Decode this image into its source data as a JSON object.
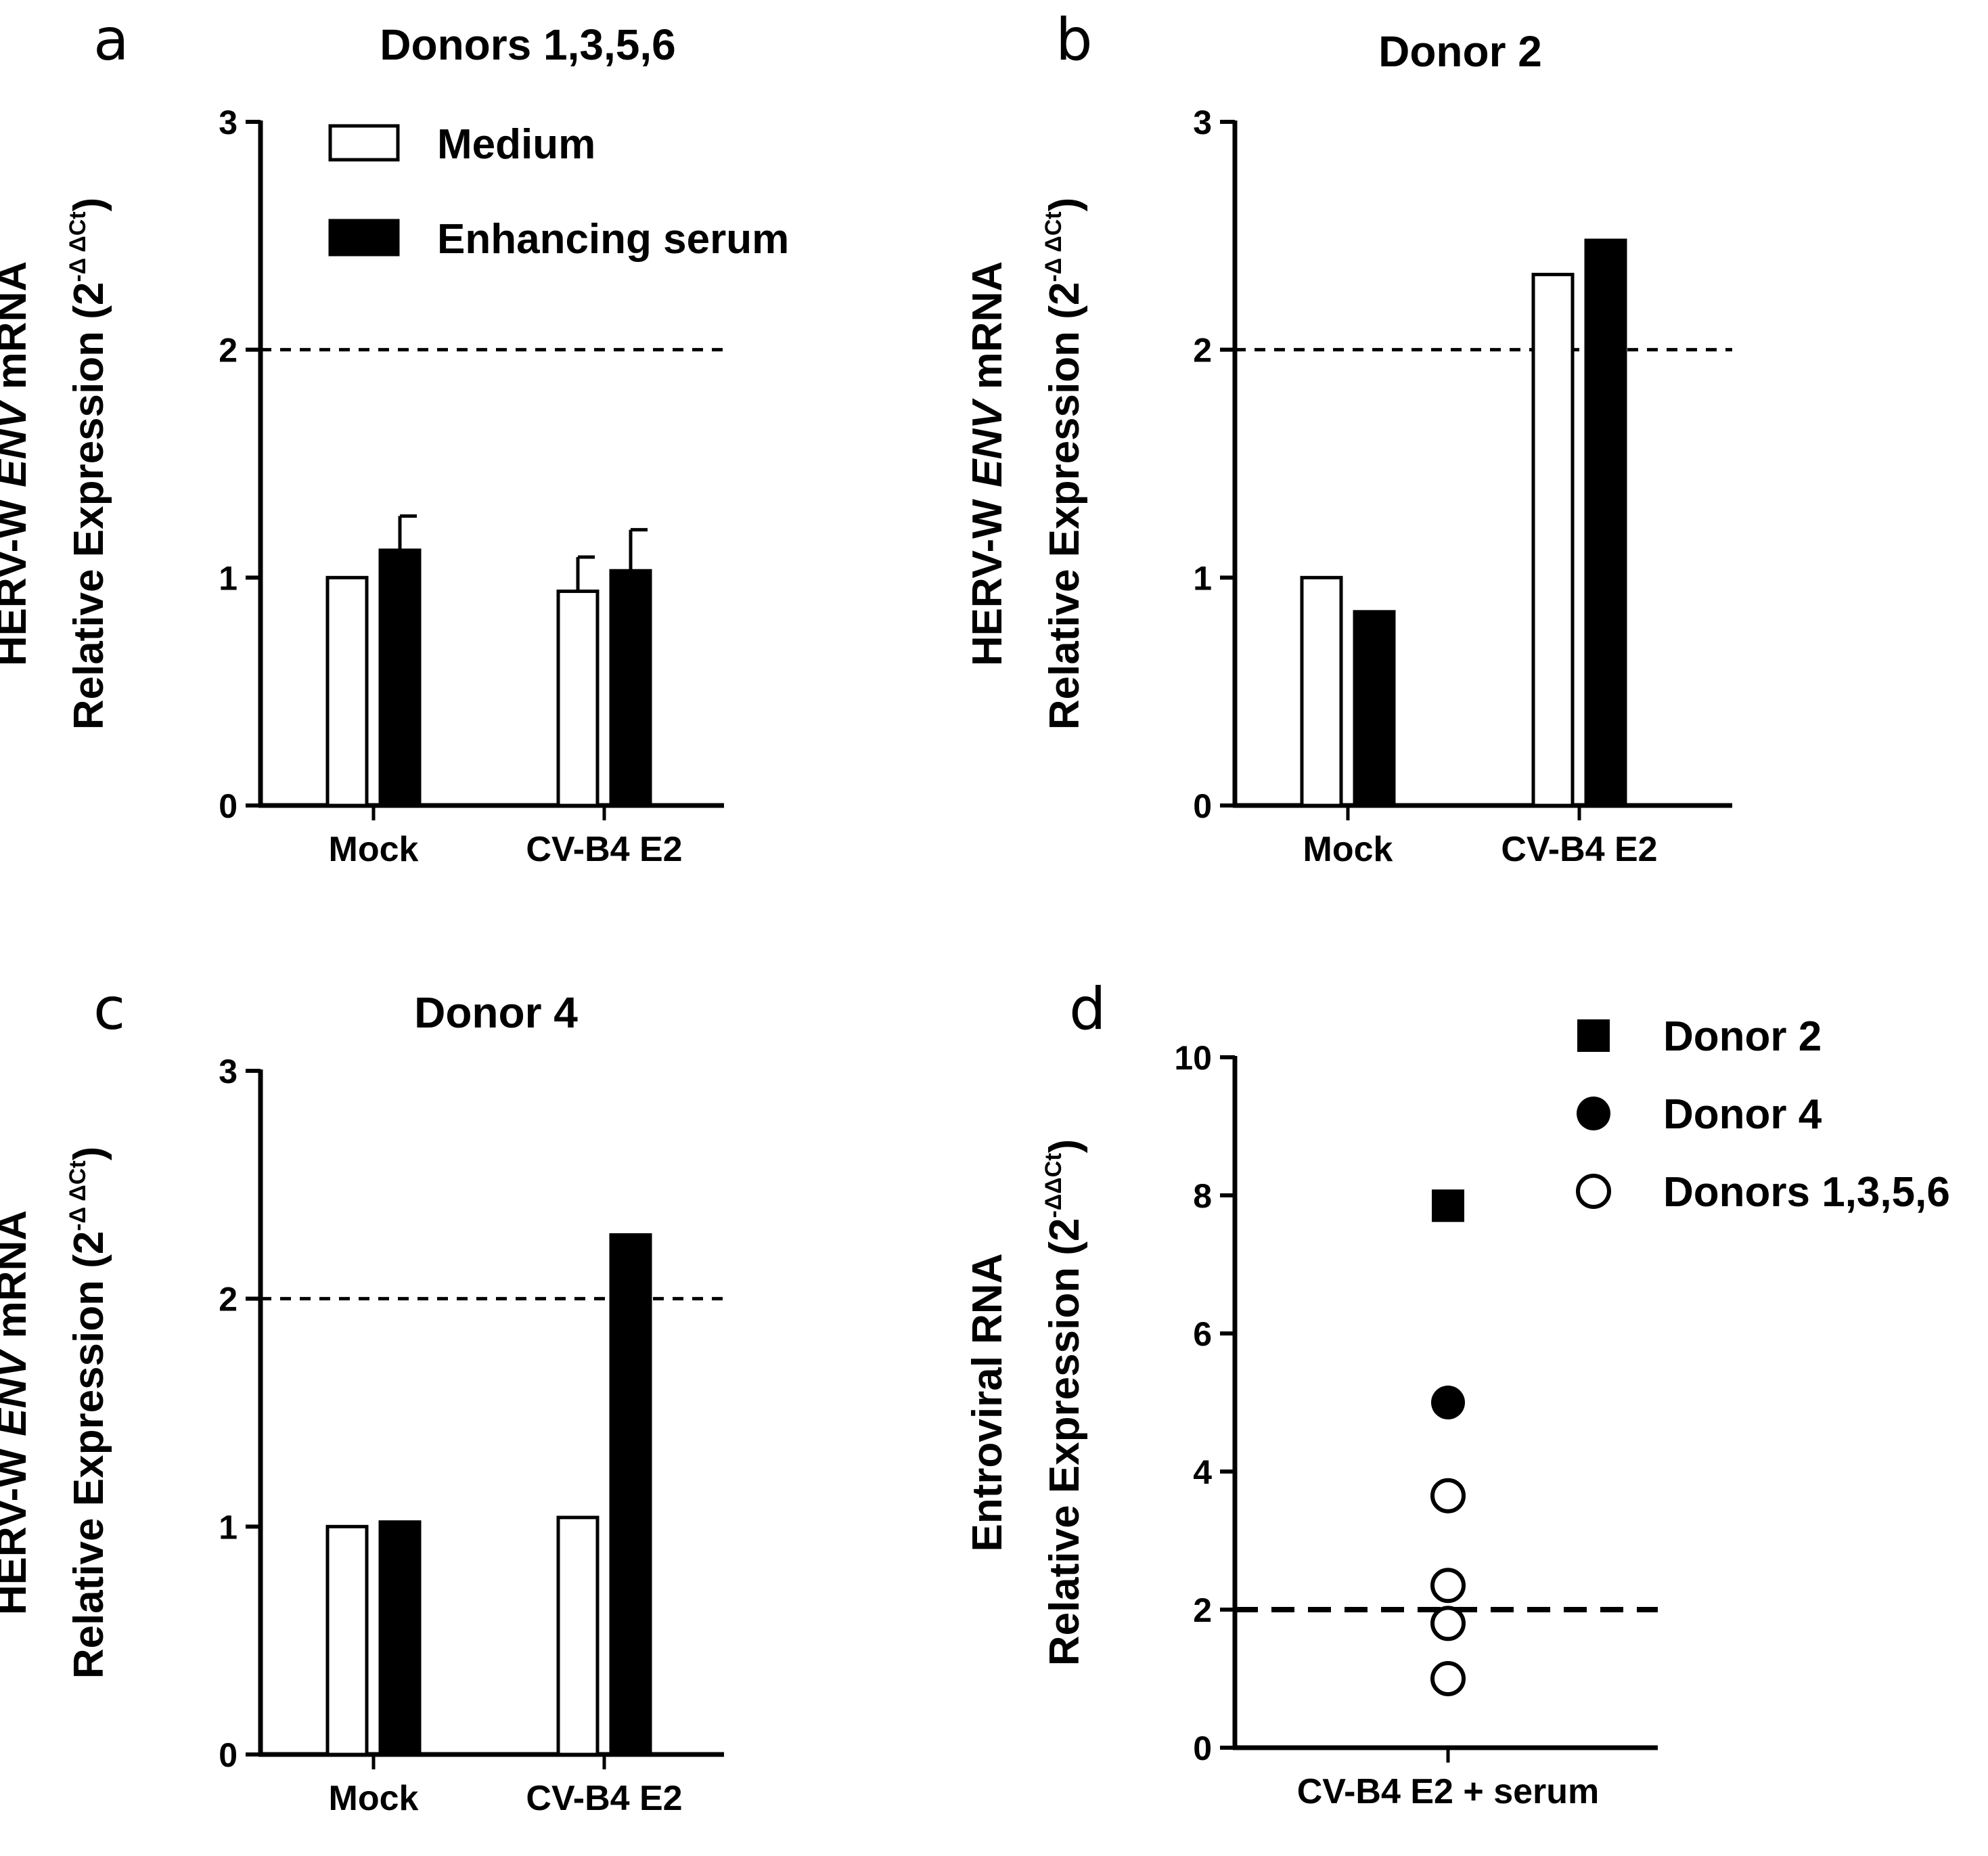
{
  "figure": {
    "panels": [
      "a",
      "b",
      "c",
      "d"
    ]
  },
  "chart_data": [
    {
      "panel": "a",
      "type": "bar",
      "title": "Donors 1,3,5,6",
      "categories": [
        "Mock",
        "CV-B4 E2"
      ],
      "series": [
        {
          "name": "Medium",
          "values": [
            1.0,
            0.94
          ],
          "errors": [
            null,
            0.15
          ],
          "fill": "#ffffff"
        },
        {
          "name": "Enhancing serum",
          "values": [
            1.12,
            1.03
          ],
          "errors": [
            0.15,
            0.18
          ],
          "fill": "#000000"
        }
      ],
      "ylabel_line1": "HERV-W ",
      "ylabel_italic": "ENV",
      "ylabel_line1_end": " mRNA",
      "ylabel_line2": "Relative Expression (2",
      "ylabel_sup": "-Δ ΔCt",
      "ylabel_close": ")",
      "ylim": [
        0,
        3
      ],
      "yticks": [
        "0",
        "1",
        "2",
        "3"
      ],
      "threshold": 2,
      "legend": [
        "Medium",
        "Enhancing serum"
      ]
    },
    {
      "panel": "b",
      "type": "bar",
      "title": "Donor 2",
      "categories": [
        "Mock",
        "CV-B4 E2"
      ],
      "series": [
        {
          "name": "Medium",
          "values": [
            1.0,
            2.33
          ],
          "fill": "#ffffff"
        },
        {
          "name": "Enhancing serum",
          "values": [
            0.85,
            2.48
          ],
          "fill": "#000000"
        }
      ],
      "ylabel_line1": "HERV-W ",
      "ylabel_italic": "ENV",
      "ylabel_line1_end": " mRNA",
      "ylabel_line2": "Relative Expression (2",
      "ylabel_sup": "-Δ ΔCt",
      "ylabel_close": ")",
      "ylim": [
        0,
        3
      ],
      "yticks": [
        "0",
        "1",
        "2",
        "3"
      ],
      "threshold": 2
    },
    {
      "panel": "c",
      "type": "bar",
      "title": "Donor 4",
      "categories": [
        "Mock",
        "CV-B4 E2"
      ],
      "series": [
        {
          "name": "Medium",
          "values": [
            1.0,
            1.04
          ],
          "fill": "#ffffff"
        },
        {
          "name": "Enhancing serum",
          "values": [
            1.02,
            2.28
          ],
          "fill": "#000000"
        }
      ],
      "ylabel_line1": "HERV-W ",
      "ylabel_italic": "ENV",
      "ylabel_line1_end": " mRNA",
      "ylabel_line2": "Relative Expression (2",
      "ylabel_sup": "-Δ ΔCt",
      "ylabel_close": ")",
      "ylim": [
        0,
        3
      ],
      "yticks": [
        "0",
        "1",
        "2",
        "3"
      ],
      "threshold": 2
    },
    {
      "panel": "d",
      "type": "scatter",
      "title": "",
      "categories": [
        "CV-B4 E2 + serum"
      ],
      "series": [
        {
          "name": "Donor 2",
          "marker": "square-filled",
          "values": [
            7.85
          ]
        },
        {
          "name": "Donor 4",
          "marker": "circle-filled",
          "values": [
            5.0
          ]
        },
        {
          "name": "Donors 1,3,5,6",
          "marker": "circle-open",
          "values": [
            3.65,
            2.35,
            1.8,
            1.0
          ]
        }
      ],
      "ylabel_line1": "Entroviral  RNA",
      "ylabel_line2": "Relative Expression (2",
      "ylabel_sup": "-ΔΔCt",
      "ylabel_close": ")",
      "ylim": [
        0,
        10
      ],
      "yticks": [
        "0",
        "2",
        "4",
        "6",
        "8",
        "10"
      ],
      "threshold": 2,
      "legend": [
        "Donor 2",
        "Donor 4",
        "Donors 1,3,5,6"
      ]
    }
  ]
}
